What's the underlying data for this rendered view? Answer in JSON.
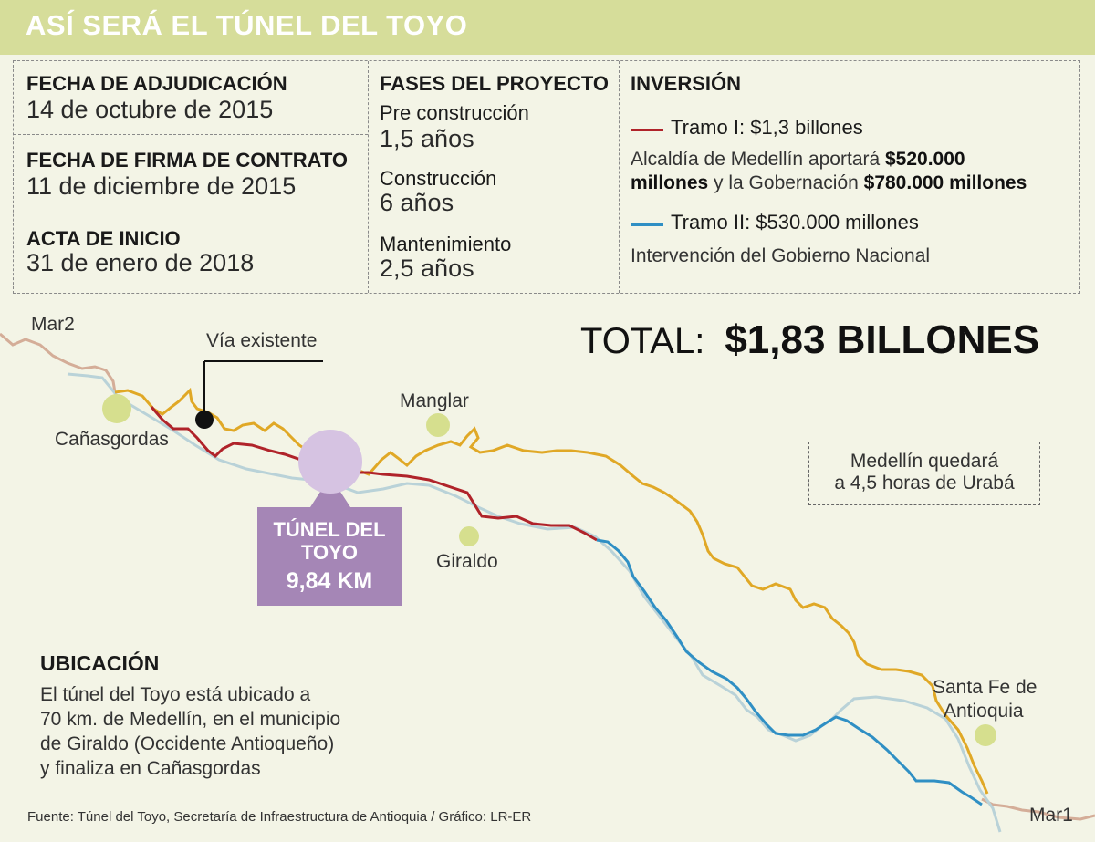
{
  "header": {
    "title": "ASÍ SERÁ EL TÚNEL DEL TOYO"
  },
  "dates": [
    {
      "label": "FECHA DE ADJUDICACIÓN",
      "value": "14 de octubre de 2015"
    },
    {
      "label": "FECHA DE FIRMA DE CONTRATO",
      "value": "11 de diciembre de 2015"
    },
    {
      "label": "ACTA DE INICIO",
      "value": "31 de enero de 2018"
    }
  ],
  "phases": {
    "title": "FASES DEL PROYECTO",
    "items": [
      {
        "name": "Pre construcción",
        "duration": "1,5 años"
      },
      {
        "name": "Construcción",
        "duration": "6 años"
      },
      {
        "name": "Mantenimiento",
        "duration": "2,5 años"
      }
    ]
  },
  "investment": {
    "title": "INVERSIÓN",
    "tramo1": {
      "label": "Tramo I: $1,3 billones",
      "color": "#b0232a",
      "desc_a": "Alcaldía de Medellín aportará ",
      "desc_b": "$520.000",
      "desc_c": "millones",
      "desc_d": " y la Gobernación ",
      "desc_e": "$780.000 millones"
    },
    "tramo2": {
      "label": "Tramo II: $530.000 millones",
      "color": "#2f8fc4",
      "desc": "Intervención del Gobierno Nacional"
    }
  },
  "total": {
    "label": "TOTAL:",
    "value": "$1,83 BILLONES"
  },
  "map": {
    "mar2": "Mar2",
    "mar1": "Mar1",
    "via_existente": "Vía existente",
    "places": {
      "canasgordas": "Cañasgordas",
      "manglar": "Manglar",
      "giraldo": "Giraldo",
      "santa_fe_1": "Santa Fe de",
      "santa_fe_2": "Antioquia"
    },
    "note_1": "Medellín quedará",
    "note_2": "a 4,5 horas de Urabá",
    "tunnel_1": "TÚNEL DEL",
    "tunnel_2": "TOYO",
    "tunnel_3": "9,84 KM",
    "colors": {
      "existing_road": "#e0a826",
      "river": "#b9d2d8",
      "mar_road": "#d4ad98",
      "town": "#d6df8e",
      "tunnel": "#d6c3e2"
    }
  },
  "location": {
    "title": "UBICACIÓN",
    "lines": [
      "El túnel del Toyo está ubicado a",
      "70 km. de Medellín, en el municipio",
      "de Giraldo (Occidente Antioqueño)",
      "y finaliza en Cañasgordas"
    ]
  },
  "footer": "Fuente: Túnel del Toyo, Secretaría de Infraestructura de Antioquia  / Gráfico: LR-ER"
}
